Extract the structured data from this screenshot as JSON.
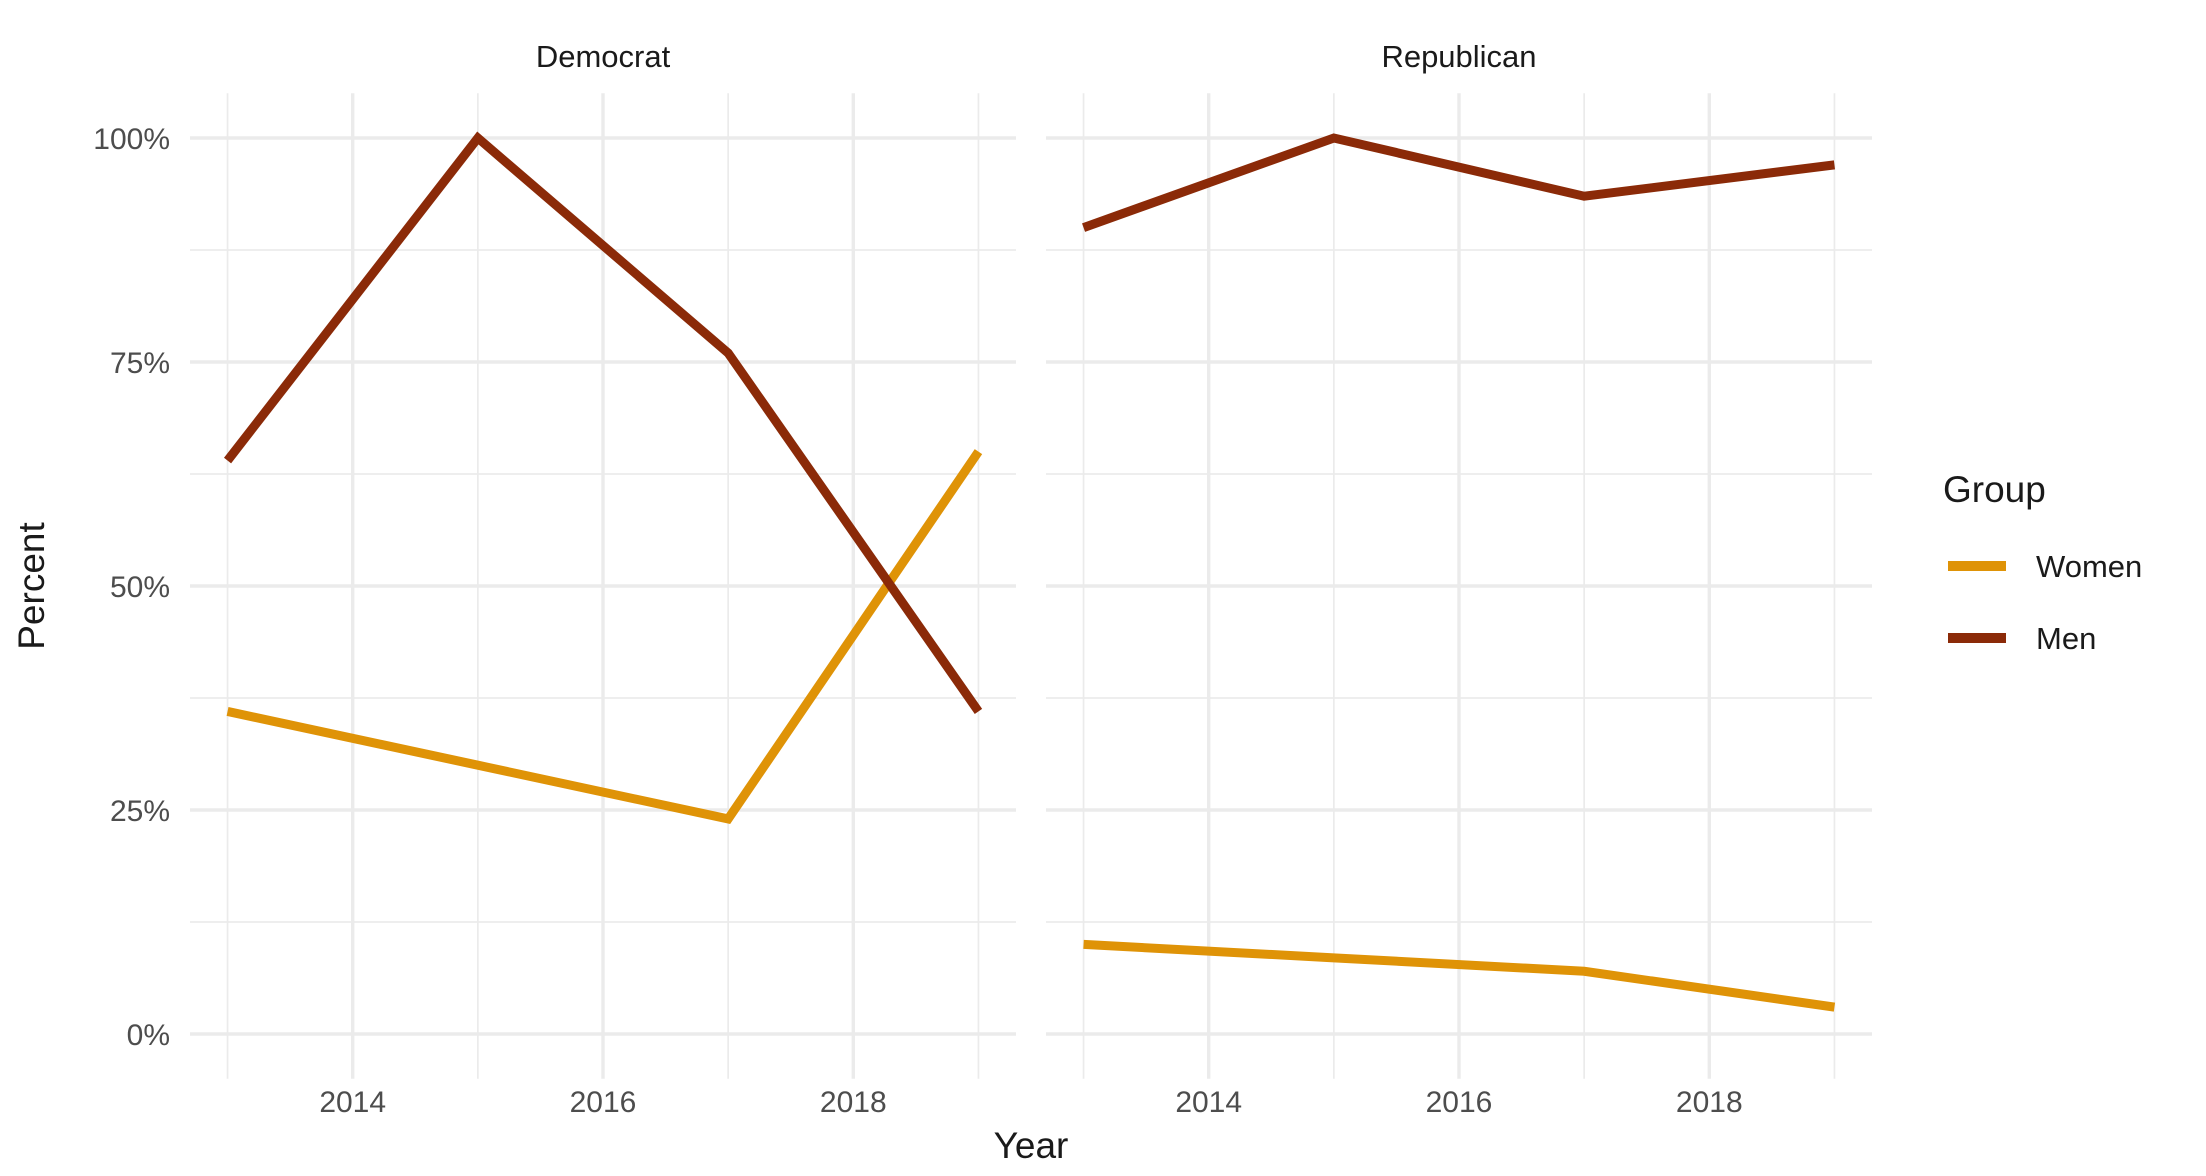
{
  "chart_data": {
    "type": "line",
    "faceted_by": "party",
    "x": [
      2013,
      2015,
      2017,
      2019
    ],
    "facets": [
      {
        "label": "Democrat",
        "series": [
          {
            "name": "Women",
            "values": [
              36,
              30,
              24,
              65
            ]
          },
          {
            "name": "Men",
            "values": [
              64,
              100,
              76,
              36
            ]
          }
        ]
      },
      {
        "label": "Republican",
        "series": [
          {
            "name": "Women",
            "values": [
              10,
              8.5,
              7,
              3
            ]
          },
          {
            "name": "Men",
            "values": [
              90,
              100,
              93.5,
              97
            ]
          }
        ]
      }
    ],
    "xlabel": "Year",
    "ylabel": "Percent",
    "x_major_ticks": [
      2014,
      2016,
      2018
    ],
    "x_minor_ticks": [
      2013,
      2015,
      2017,
      2019
    ],
    "y_major_ticks": [
      0,
      25,
      50,
      75,
      100
    ],
    "y_tick_labels": [
      "0%",
      "25%",
      "50%",
      "75%",
      "100%"
    ],
    "y_minor_ticks": [
      12.5,
      37.5,
      62.5,
      87.5
    ],
    "xlim": [
      2012.7,
      2019.3
    ],
    "ylim": [
      -5,
      105
    ],
    "grid": {
      "major": true,
      "minor": true
    },
    "legend": {
      "title": "Group",
      "position": "right",
      "entries": [
        {
          "label": "Women",
          "color": "#DF9307"
        },
        {
          "label": "Men",
          "color": "#8B2A08"
        }
      ]
    },
    "style": {
      "background": "#FFFFFF",
      "gridline_color": "#EBEBEB",
      "tick_label_color": "#4D4D4D",
      "text_color": "#1A1A1A"
    }
  }
}
